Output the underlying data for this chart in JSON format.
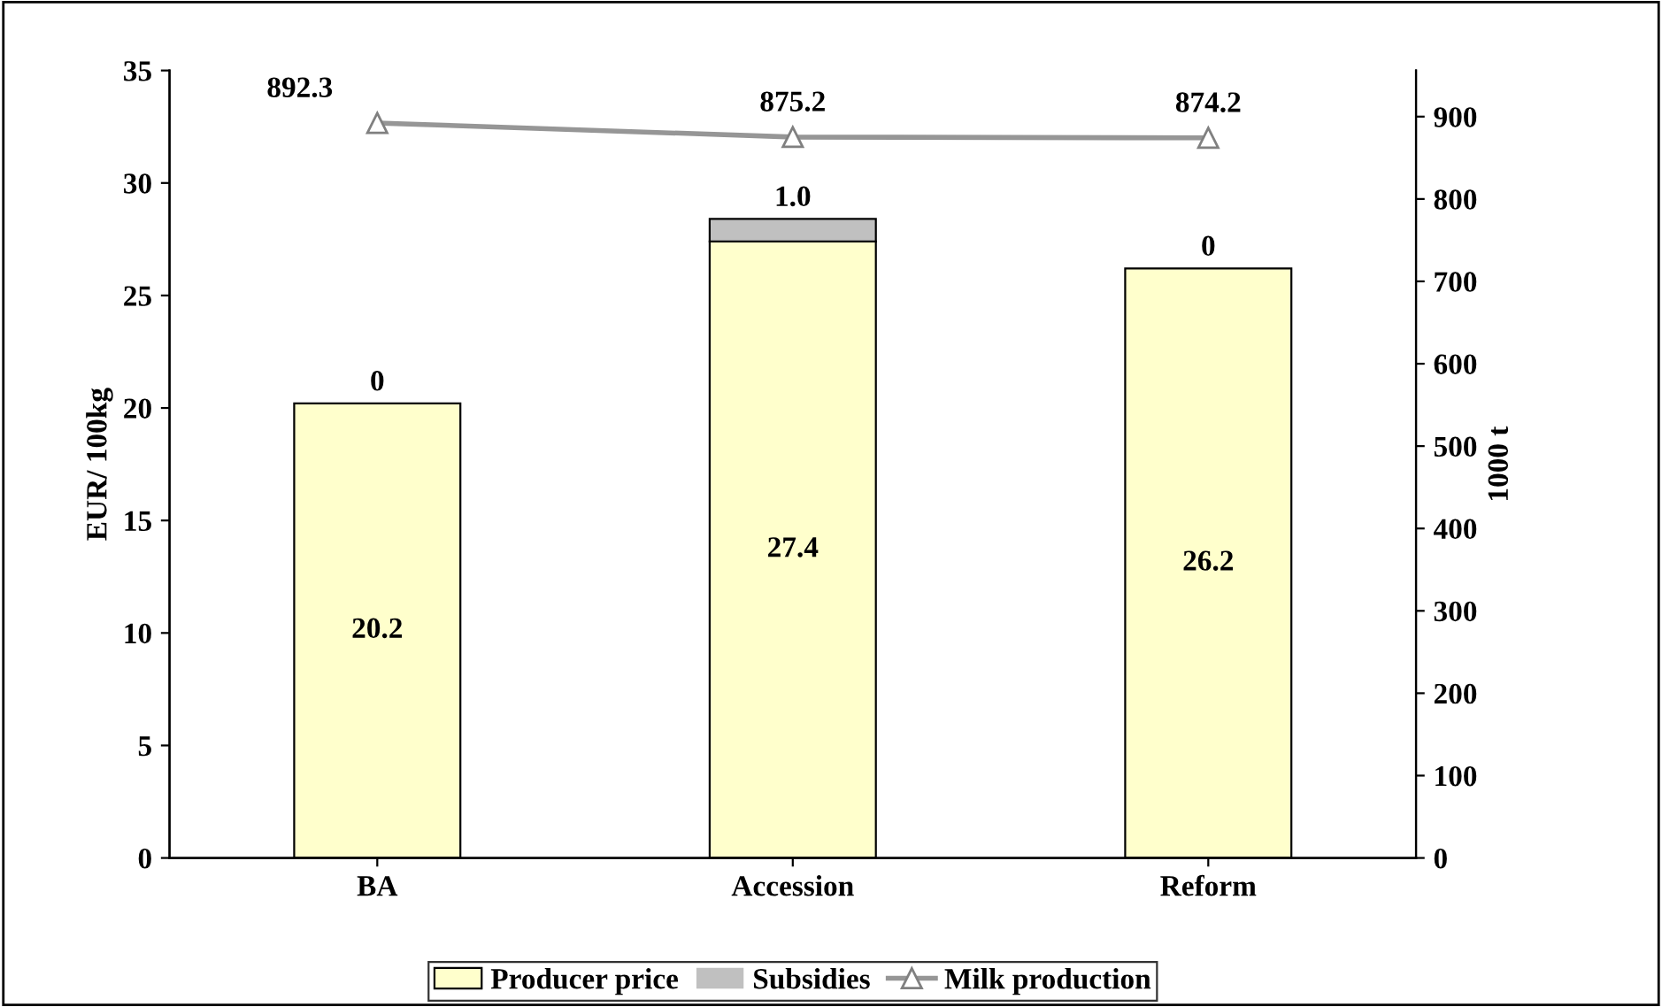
{
  "chart_data": {
    "type": "bar",
    "stacked": true,
    "categories": [
      "BA",
      "Accession",
      "Reform"
    ],
    "ylabel": "EUR/ 100kg",
    "y2label": "1000 t",
    "ylim": [
      0,
      35
    ],
    "yticks": [
      0,
      5,
      10,
      15,
      20,
      25,
      30,
      35
    ],
    "y2lim": [
      0,
      956
    ],
    "y2ticks": [
      0,
      100,
      200,
      300,
      400,
      500,
      600,
      700,
      800,
      900
    ],
    "grid": false,
    "legend": "bottom",
    "series": [
      {
        "name": "Producer price",
        "color": "#ffffcc",
        "values": [
          20.2,
          27.4,
          26.2
        ],
        "value_labels": [
          "20.2",
          "27.4",
          "26.2"
        ]
      },
      {
        "name": "Subsidies",
        "color": "#c0c0c0",
        "values": [
          0,
          1.0,
          0
        ],
        "value_labels": [
          "0",
          "1.0",
          "0"
        ]
      },
      {
        "name": "Milk production",
        "type": "line",
        "axis": "y2",
        "color": "#969696",
        "marker": "triangle",
        "values": [
          892.3,
          875.2,
          874.2
        ],
        "value_labels": [
          "892.3",
          "875.2",
          "874.2"
        ]
      }
    ]
  }
}
